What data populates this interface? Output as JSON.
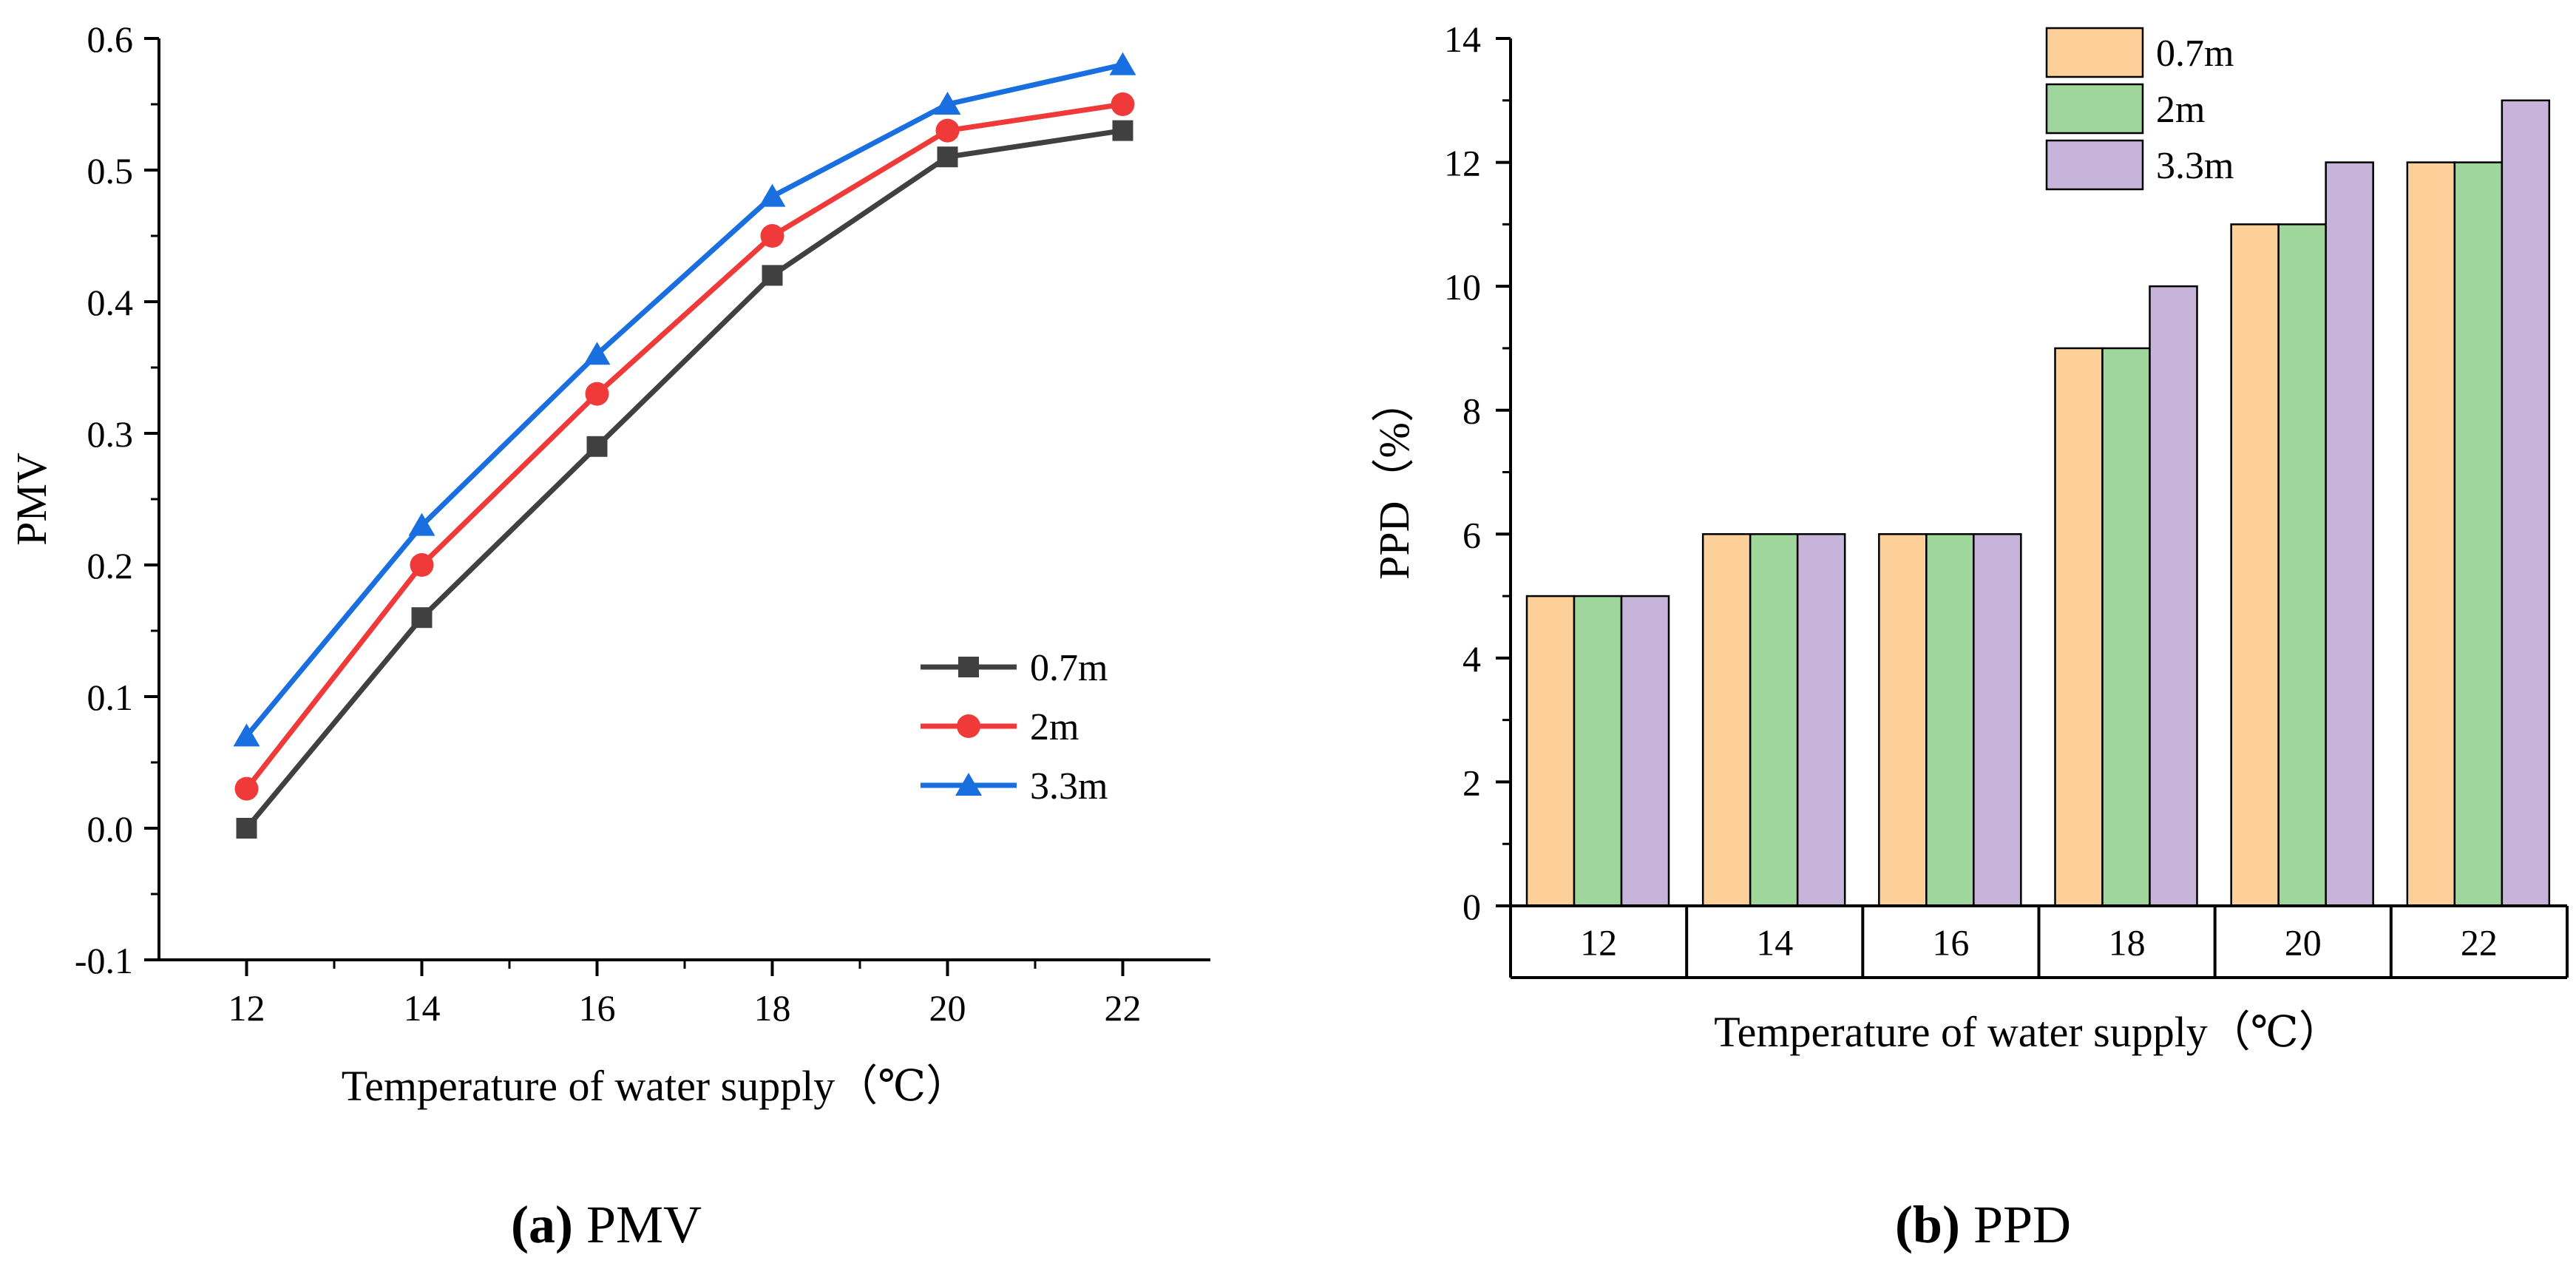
{
  "chart_data": [
    {
      "panel": "a",
      "type": "line",
      "xlabel": "Temperature of water supply（℃）",
      "ylabel": "PMV",
      "x": [
        12,
        14,
        16,
        18,
        20,
        22
      ],
      "xlim": [
        11,
        23
      ],
      "ylim": [
        -0.1,
        0.6
      ],
      "yticks": [
        "-0.1",
        "0.0",
        "0.1",
        "0.2",
        "0.3",
        "0.4",
        "0.5",
        "0.6"
      ],
      "xticks": [
        "12",
        "14",
        "16",
        "18",
        "20",
        "22"
      ],
      "legend_position": "center-right",
      "grid": false,
      "series": [
        {
          "name": "0.7m",
          "marker": "square",
          "color": "#404040",
          "values": [
            0.0,
            0.16,
            0.29,
            0.42,
            0.51,
            0.53
          ]
        },
        {
          "name": "2m",
          "marker": "circle",
          "color": "#f03a3a",
          "values": [
            0.03,
            0.2,
            0.33,
            0.45,
            0.53,
            0.55
          ]
        },
        {
          "name": "3.3m",
          "marker": "triangle",
          "color": "#1a6fe0",
          "values": [
            0.07,
            0.23,
            0.36,
            0.48,
            0.55,
            0.58
          ]
        }
      ]
    },
    {
      "panel": "b",
      "type": "bar",
      "xlabel": "Temperature of water supply（℃）",
      "ylabel": "PPD（%）",
      "categories": [
        "12",
        "14",
        "16",
        "18",
        "20",
        "22"
      ],
      "ylim": [
        0,
        14
      ],
      "yticks": [
        "0",
        "2",
        "4",
        "6",
        "8",
        "10",
        "12",
        "14"
      ],
      "legend_position": "top-left",
      "grid": false,
      "series": [
        {
          "name": "0.7m",
          "color": "#fdd09a",
          "values": [
            5,
            6,
            6,
            9,
            11,
            12
          ]
        },
        {
          "name": "2m",
          "color": "#9fd69c",
          "values": [
            5,
            6,
            6,
            9,
            11,
            12
          ]
        },
        {
          "name": "3.3m",
          "color": "#c7b4da",
          "values": [
            5,
            6,
            6,
            10,
            12,
            13
          ]
        }
      ]
    }
  ],
  "captions": {
    "a": {
      "letter": "(a)",
      "rest": " PMV"
    },
    "b": {
      "letter": "(b)",
      "rest": " PPD"
    }
  }
}
